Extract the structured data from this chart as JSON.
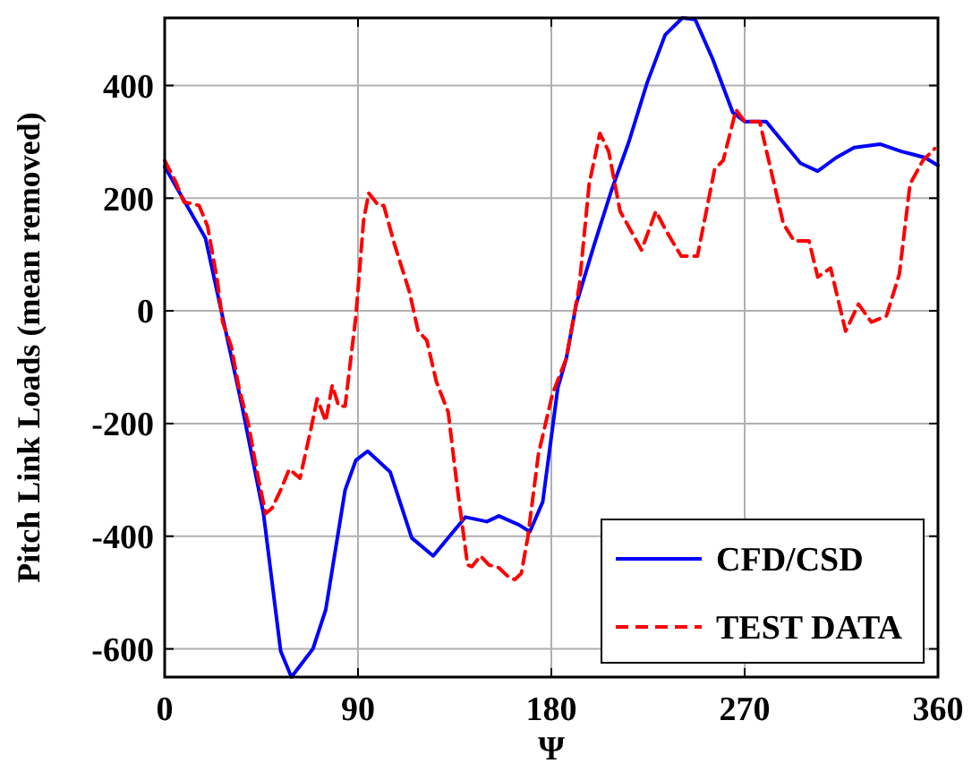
{
  "chart_data": {
    "type": "line",
    "xlabel": "Ψ",
    "ylabel": "Pitch Link Loads (mean removed)",
    "xlim": [
      0,
      360
    ],
    "ylim": [
      -650,
      520
    ],
    "xticks": [
      0,
      90,
      180,
      270,
      360
    ],
    "yticks": [
      -600,
      -400,
      -200,
      0,
      200,
      400
    ],
    "grid": true,
    "legend": "bottom right",
    "series": [
      {
        "name": "CFD/CSD",
        "color": "#0000ff",
        "line_style": "solid",
        "x": [
          0,
          19,
          36,
          46,
          54,
          59,
          69,
          75,
          84,
          89,
          94.5,
          105,
          115,
          125,
          140,
          150,
          155.6,
          165,
          170,
          176,
          183,
          187,
          191.6,
          200,
          208,
          216,
          224.6,
          233,
          241,
          247,
          255,
          264.5,
          270,
          280,
          288,
          296,
          304,
          312.6,
          321,
          333,
          343,
          354,
          360
        ],
        "values": [
          256,
          129,
          -169,
          -360,
          -604,
          -650,
          -600,
          -530,
          -318,
          -265,
          -249,
          -286,
          -403,
          -435,
          -366,
          -374,
          -364,
          -380,
          -392,
          -339,
          -137,
          -84,
          12,
          118,
          214,
          299,
          405,
          490,
          520,
          517,
          448,
          352,
          336,
          336,
          299,
          262,
          248,
          272,
          290,
          296,
          283,
          272,
          258
        ]
      },
      {
        "name": "TEST DATA",
        "color": "#ff0000",
        "line_style": "dashed",
        "x": [
          0,
          5,
          9,
          13,
          16,
          20,
          24.5,
          27,
          31,
          34.6,
          39,
          43,
          47,
          50,
          54,
          58,
          63,
          68,
          71,
          75,
          78,
          81,
          84,
          89,
          92.6,
          95,
          99.5,
          102,
          107,
          114,
          118,
          122,
          126.5,
          132,
          136,
          141,
          143,
          147,
          151,
          155.6,
          160,
          163,
          166,
          169,
          174,
          180.5,
          187,
          193,
          197.6,
          202.6,
          206.7,
          212,
          222,
          228.7,
          233,
          240.5,
          248,
          256,
          260,
          266,
          270,
          277,
          288,
          293,
          300,
          304,
          310,
          317,
          323,
          329,
          336,
          342,
          347,
          353,
          358.5
        ],
        "values": [
          267,
          230,
          193,
          190,
          187,
          150,
          54,
          -20,
          -63,
          -137,
          -201,
          -286,
          -360,
          -350,
          -318,
          -281,
          -297,
          -211,
          -156,
          -196,
          -132,
          -169,
          -169,
          -10,
          161,
          209,
          187,
          187,
          118,
          33,
          -36,
          -52,
          -126,
          -180,
          -307,
          -451,
          -454,
          -435,
          -451,
          -456,
          -472,
          -477,
          -466,
          -403,
          -254,
          -148,
          -84,
          44,
          225,
          315,
          283,
          177,
          108,
          177,
          145,
          97,
          97,
          251,
          267,
          357,
          336,
          336,
          155,
          124,
          124,
          60,
          76,
          -36,
          12,
          -20,
          -9,
          65,
          225,
          267,
          288
        ]
      }
    ]
  }
}
